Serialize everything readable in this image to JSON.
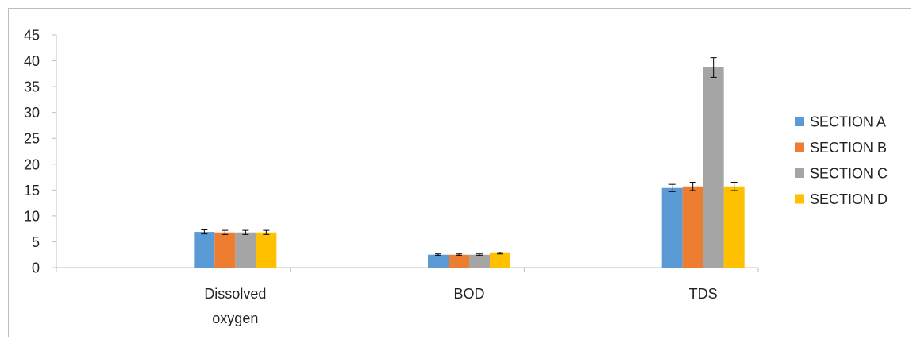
{
  "chart_data": {
    "type": "bar",
    "title": "",
    "xlabel": "",
    "ylabel": "",
    "categories": [
      "Dissolved oxygen",
      "BOD",
      "TDS"
    ],
    "category_label_lines": [
      [
        "Dissolved",
        "oxygen"
      ],
      [
        "BOD"
      ],
      [
        "TDS"
      ]
    ],
    "ylim": [
      0,
      45
    ],
    "yticks": [
      0,
      5,
      10,
      15,
      20,
      25,
      30,
      35,
      40,
      45
    ],
    "grid": false,
    "legend_position": "right",
    "error_bars": true,
    "series": [
      {
        "name": "SECTION A",
        "color": "#5b9bd5",
        "values": [
          6.9,
          2.5,
          15.4
        ],
        "errors": [
          0.4,
          0.15,
          0.7
        ]
      },
      {
        "name": "SECTION B",
        "color": "#ed7d31",
        "values": [
          6.8,
          2.5,
          15.7
        ],
        "errors": [
          0.4,
          0.15,
          0.8
        ]
      },
      {
        "name": "SECTION C",
        "color": "#a5a5a5",
        "values": [
          6.8,
          2.5,
          38.7
        ],
        "errors": [
          0.4,
          0.15,
          1.9
        ]
      },
      {
        "name": "SECTION D",
        "color": "#ffc000",
        "values": [
          6.8,
          2.8,
          15.7
        ],
        "errors": [
          0.4,
          0.15,
          0.8
        ]
      }
    ]
  }
}
